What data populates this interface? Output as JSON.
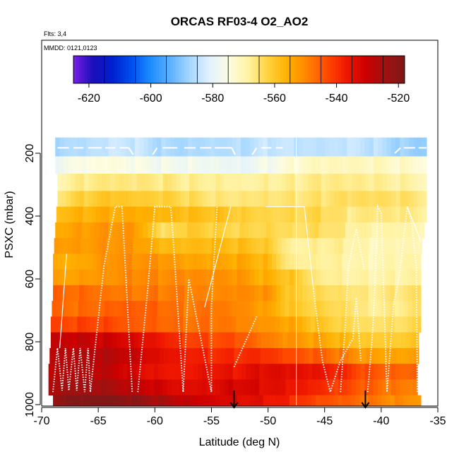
{
  "chart_data": {
    "type": "heatmap",
    "title": "ORCAS RF03-4 O2_AO2",
    "flights_label": "Flts: 3,4",
    "dates_label": "MMDD: 0121,0123",
    "xlabel": "Latitude (deg N)",
    "ylabel": "PSXC (mbar)",
    "xlim": [
      -70,
      -35
    ],
    "ylim": [
      1000,
      100
    ],
    "x_ticks": [
      "-70",
      "-65",
      "-60",
      "-55",
      "-50",
      "-45",
      "-40",
      "-35"
    ],
    "y_ticks": [
      "200",
      "400",
      "600",
      "800",
      "1000"
    ],
    "colorbar": {
      "range": [
        -625,
        -518
      ],
      "ticks": [
        "-620",
        "-600",
        "-580",
        "-560",
        "-540",
        "-520"
      ],
      "colors": [
        "#7a1fe8",
        "#1a0fb8",
        "#0020d0",
        "#0050f0",
        "#1f8fff",
        "#5fb2ff",
        "#a8d8ff",
        "#e2f2ff",
        "#fdfde0",
        "#fff2a0",
        "#ffd23c",
        "#ffb000",
        "#ff8400",
        "#ff4a00",
        "#f01800",
        "#cc0000",
        "#a21010",
        "#7c1818"
      ]
    },
    "pressure_bands": [
      {
        "p": [
          150,
          210
        ],
        "values": [
          -588,
          -588,
          -585,
          -584,
          -586,
          -585,
          -584,
          -585,
          -584,
          -586,
          -587,
          -585,
          -585,
          -587
        ]
      },
      {
        "p": [
          210,
          265
        ],
        "values": [
          -578,
          -577,
          -576,
          -577,
          -577,
          -576,
          -576,
          -578,
          -576,
          -574,
          -573,
          -573,
          -572,
          -572
        ]
      },
      {
        "p": [
          265,
          320
        ],
        "values": [
          -569,
          -568,
          -568,
          -568,
          -567,
          -567,
          -566,
          -567,
          -567,
          -568,
          -568,
          -569,
          -569,
          -569
        ]
      },
      {
        "p": [
          320,
          370
        ],
        "values": [
          -564,
          -562,
          -561,
          -563,
          -563,
          -564,
          -565,
          -564,
          -564,
          -565,
          -566,
          -566,
          -566,
          -566
        ]
      },
      {
        "p": [
          370,
          420
        ],
        "values": [
          -556,
          -556,
          -556,
          -557,
          -559,
          -559,
          -558,
          -560,
          -561,
          -562,
          -563,
          -568,
          -568,
          -568
        ]
      },
      {
        "p": [
          420,
          470
        ],
        "values": [
          -553,
          -552,
          -552,
          -554,
          -567,
          -562,
          -562,
          -562,
          -561,
          -563,
          -563,
          -568,
          -571,
          -571
        ]
      },
      {
        "p": [
          470,
          520
        ],
        "values": [
          -551,
          -551,
          -551,
          -553,
          -559,
          -560,
          -558,
          -558,
          -559,
          -567,
          -566,
          -568,
          -572,
          -572
        ]
      },
      {
        "p": [
          520,
          570
        ],
        "values": [
          -554,
          -553,
          -550,
          -551,
          -553,
          -556,
          -556,
          -555,
          -556,
          -566,
          -566,
          -568,
          -571,
          -571
        ]
      },
      {
        "p": [
          570,
          620
        ],
        "values": [
          -553,
          -551,
          -550,
          -549,
          -551,
          -552,
          -553,
          -553,
          -556,
          -558,
          -565,
          -567,
          -569,
          -570
        ]
      },
      {
        "p": [
          620,
          670
        ],
        "values": [
          -546,
          -545,
          -546,
          -547,
          -548,
          -550,
          -552,
          -552,
          -552,
          -560,
          -562,
          -563,
          -566,
          -566
        ]
      },
      {
        "p": [
          670,
          720
        ],
        "values": [
          -547,
          -546,
          -544,
          -543,
          -545,
          -549,
          -549,
          -552,
          -555,
          -560,
          -561,
          -562,
          -566,
          -566
        ]
      },
      {
        "p": [
          720,
          770
        ],
        "values": [
          -544,
          -542,
          -541,
          -543,
          -544,
          -547,
          -548,
          -551,
          -554,
          -555,
          -559,
          -561,
          -563,
          -563
        ]
      },
      {
        "p": [
          770,
          820
        ],
        "values": [
          -531,
          -530,
          -530,
          -531,
          -534,
          -540,
          -543,
          -545,
          -550,
          -553,
          -554,
          -556,
          -559,
          -559
        ]
      },
      {
        "p": [
          820,
          870
        ],
        "values": [
          -530,
          -528,
          -527,
          -528,
          -532,
          -535,
          -538,
          -540,
          -541,
          -545,
          -546,
          -548,
          -552,
          -552
        ]
      },
      {
        "p": [
          870,
          920
        ],
        "values": [
          -530,
          -528,
          -529,
          -531,
          -534,
          -535,
          -534,
          -536,
          -535,
          -536,
          -537,
          -539,
          -543,
          -544
        ]
      },
      {
        "p": [
          920,
          970
        ],
        "values": [
          -527,
          -526,
          -526,
          -528,
          -530,
          -532,
          -532,
          -531,
          -534,
          -537,
          -540,
          -543,
          -545,
          -547
        ]
      },
      {
        "p": [
          970,
          1010
        ],
        "values": [
          -522,
          -521,
          -521,
          -522,
          -525,
          -528,
          -530,
          -532,
          -535,
          -540,
          -545,
          -547,
          -549,
          -550
        ]
      }
    ],
    "band_lat_edges": [
      [
        -68.8,
        -36.0
      ],
      [
        -68.8,
        -36.0
      ],
      [
        -68.6,
        -36.0
      ],
      [
        -68.6,
        -36.0
      ],
      [
        -68.7,
        -36.0
      ],
      [
        -68.8,
        -36.2
      ],
      [
        -68.9,
        -36.4
      ],
      [
        -69.0,
        -36.5
      ],
      [
        -69.0,
        -36.5
      ],
      [
        -69.0,
        -36.5
      ],
      [
        -69.1,
        -36.5
      ],
      [
        -69.2,
        -36.5
      ],
      [
        -69.2,
        -36.7
      ],
      [
        -69.3,
        -36.7
      ],
      [
        -69.4,
        -36.8
      ],
      [
        -69.4,
        -36.8
      ],
      [
        -69.0,
        -36.5
      ]
    ],
    "flight_track_dashed": [
      [
        [
          -68.6,
          183
        ],
        [
          -67.6,
          183
        ]
      ],
      [
        [
          -67.2,
          183
        ],
        [
          -66.3,
          183
        ]
      ],
      [
        [
          -65.9,
          183
        ],
        [
          -64.7,
          183
        ]
      ],
      [
        [
          -64.4,
          183
        ],
        [
          -63.5,
          183
        ]
      ],
      [
        [
          -63.1,
          183
        ],
        [
          -62.3,
          183
        ]
      ],
      [
        [
          -62.3,
          183
        ],
        [
          -61.9,
          205
        ]
      ],
      [
        [
          -60.2,
          205
        ],
        [
          -59.8,
          183
        ]
      ],
      [
        [
          -59.3,
          183
        ],
        [
          -58.0,
          183
        ]
      ],
      [
        [
          -57.4,
          183
        ],
        [
          -56.4,
          183
        ]
      ],
      [
        [
          -56.0,
          183
        ],
        [
          -55.0,
          183
        ]
      ],
      [
        [
          -54.7,
          183
        ],
        [
          -53.2,
          183
        ]
      ],
      [
        [
          -53.2,
          183
        ],
        [
          -52.9,
          205
        ]
      ],
      [
        [
          -51.4,
          205
        ],
        [
          -51.0,
          183
        ]
      ],
      [
        [
          -50.6,
          183
        ],
        [
          -49.7,
          183
        ]
      ],
      [
        [
          -49.3,
          183
        ],
        [
          -48.7,
          183
        ]
      ],
      [
        [
          -38.8,
          200
        ],
        [
          -38.3,
          183
        ]
      ],
      [
        [
          -38.0,
          183
        ],
        [
          -37.0,
          183
        ]
      ],
      [
        [
          -36.7,
          183
        ],
        [
          -36.0,
          183
        ]
      ]
    ],
    "flight_track_dotted": [
      [
        [
          -69.0,
          960
        ],
        [
          -68.6,
          820
        ],
        [
          -68.2,
          955
        ],
        [
          -67.9,
          820
        ],
        [
          -67.6,
          955
        ],
        [
          -67.2,
          820
        ],
        [
          -66.9,
          955
        ],
        [
          -66.6,
          820
        ],
        [
          -66.2,
          960
        ],
        [
          -65.9,
          820
        ],
        [
          -65.7,
          960
        ],
        [
          -64.5,
          560
        ],
        [
          -63.5,
          370
        ],
        [
          -62.9,
          370
        ],
        [
          -62.0,
          960
        ]
      ],
      [
        [
          -61.5,
          960
        ],
        [
          -60.6,
          620
        ],
        [
          -60.0,
          370
        ],
        [
          -58.6,
          370
        ],
        [
          -58.4,
          460
        ],
        [
          -57.5,
          960
        ],
        [
          -57.0,
          600
        ],
        [
          -55.0,
          960
        ],
        [
          -55.0,
          690
        ],
        [
          -54.5,
          370
        ]
      ],
      [
        [
          -46.0,
          630
        ],
        [
          -45.2,
          860
        ],
        [
          -44.5,
          960
        ],
        [
          -43.6,
          860
        ],
        [
          -42.5,
          790
        ],
        [
          -42.2,
          660
        ],
        [
          -41.8,
          860
        ]
      ],
      [
        [
          -43.6,
          960
        ],
        [
          -43.2,
          760
        ],
        [
          -42.9,
          560
        ],
        [
          -42.2,
          440
        ],
        [
          -41.5,
          570
        ]
      ],
      [
        [
          -41.2,
          960
        ],
        [
          -40.8,
          790
        ],
        [
          -40.6,
          660
        ],
        [
          -40.3,
          370
        ],
        [
          -40.0,
          390
        ],
        [
          -39.5,
          960
        ],
        [
          -38.9,
          680
        ],
        [
          -38.4,
          590
        ],
        [
          -37.7,
          370
        ],
        [
          -37.3,
          420
        ],
        [
          -36.9,
          560
        ],
        [
          -36.8,
          960
        ]
      ],
      [
        [
          -53.0,
          880
        ],
        [
          -51.0,
          720
        ]
      ]
    ],
    "flight_track_solid": [
      [
        [
          -68.4,
          820
        ],
        [
          -67.8,
          520
        ]
      ],
      [
        [
          -55.6,
          690
        ],
        [
          -53.3,
          370
        ]
      ],
      [
        [
          -50.2,
          370
        ],
        [
          -46.8,
          370
        ]
      ],
      [
        [
          -46.8,
          370
        ],
        [
          -46.0,
          630
        ]
      ],
      [
        [
          -37.7,
          370
        ],
        [
          -36.5,
          480
        ]
      ]
    ],
    "vertical_marker_lat": -47.5,
    "arrows": [
      {
        "lat": -53.0,
        "p_top": 955,
        "p_tip": 1010
      },
      {
        "lat": -41.4,
        "p_top": 955,
        "p_tip": 1010
      }
    ],
    "grid": false,
    "legend": "top"
  }
}
